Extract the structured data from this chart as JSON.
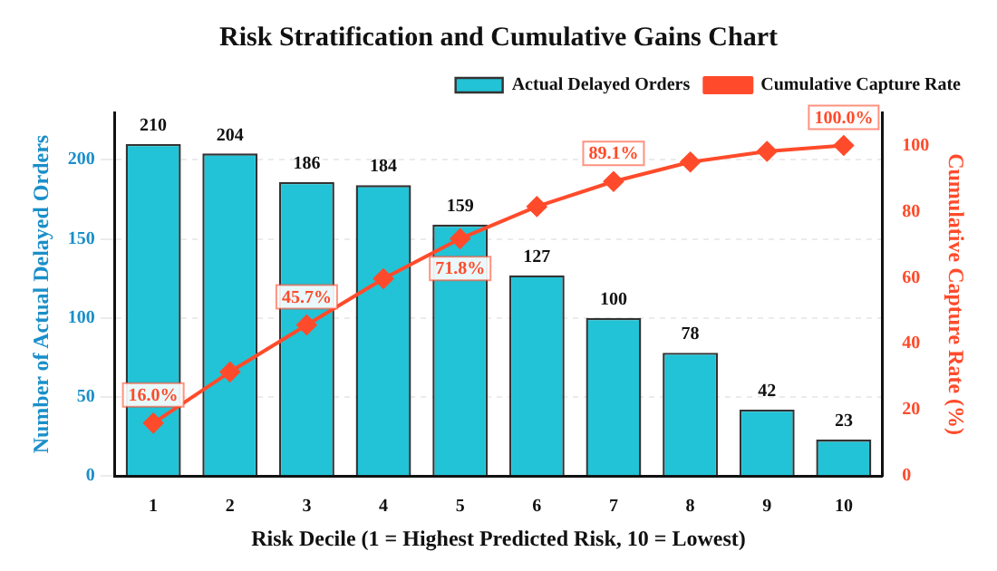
{
  "chart_data": {
    "type": "bar",
    "title": "Risk Stratification and Cumulative Gains Chart",
    "xlabel": "Risk Decile (1 = Highest Predicted Risk, 10 = Lowest)",
    "ylabel": "Number of Actual Delayed Orders",
    "y2label": "Cumulative Capture Rate (%)",
    "categories": [
      "1",
      "2",
      "3",
      "4",
      "5",
      "6",
      "7",
      "8",
      "9",
      "10"
    ],
    "series": [
      {
        "name": "Actual Delayed Orders",
        "color": "#22c3d6",
        "values": [
          210,
          204,
          186,
          184,
          159,
          127,
          100,
          78,
          42,
          23
        ],
        "value_labels": [
          "210",
          "204",
          "186",
          "184",
          "159",
          "127",
          "100",
          "78",
          "42",
          "23"
        ]
      },
      {
        "name": "Cumulative Capture Rate",
        "type": "line",
        "axis": "y2",
        "color": "#ff4b2b",
        "marker": "diamond",
        "values": [
          16.0,
          31.5,
          45.7,
          59.7,
          71.8,
          81.5,
          89.1,
          95.0,
          98.2,
          100.0
        ],
        "value_labels": [
          "16.0%",
          null,
          "45.7%",
          null,
          "71.8%",
          null,
          "89.1%",
          null,
          null,
          "100.0%"
        ]
      }
    ],
    "ylim": [
      0,
      230
    ],
    "yticks": [
      0,
      50,
      100,
      150,
      200
    ],
    "y2lim": [
      0,
      110
    ],
    "y2ticks": [
      0,
      20,
      40,
      60,
      80,
      100
    ],
    "grid": "y",
    "legend": "top right"
  }
}
